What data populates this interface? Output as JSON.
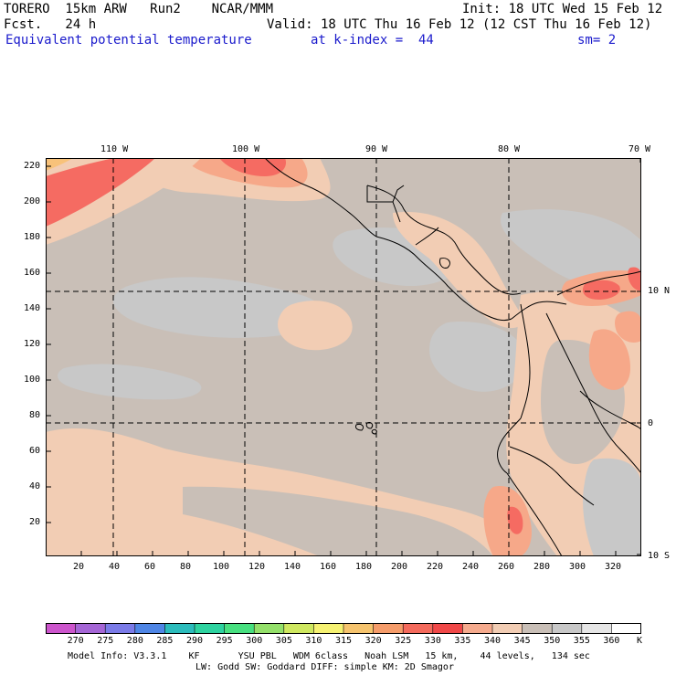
{
  "header": {
    "model": "TORERO  15km ARW   Run2    NCAR/MMM",
    "init": "Init: 18 UTC Wed 15 Feb 12",
    "fcst": "Fcst.   24 h",
    "valid": "Valid: 18 UTC Thu 16 Feb 12 (12 CST Thu 16 Feb 12)",
    "field": "Equivalent potential temperature",
    "level": "at k-index =  44",
    "smooth": "sm= 2"
  },
  "map": {
    "top_axis_labels": [
      "110 W",
      "100 W",
      "90 W",
      "80 W",
      "70 W"
    ],
    "right_axis_labels": [
      "10 N",
      "0",
      "10 S"
    ],
    "left_axis_labels": [
      "220",
      "200",
      "180",
      "160",
      "140",
      "120",
      "100",
      "80",
      "60",
      "40",
      "20"
    ],
    "bottom_axis_labels": [
      "20",
      "40",
      "60",
      "80",
      "100",
      "120",
      "140",
      "160",
      "180",
      "200",
      "220",
      "240",
      "260",
      "280",
      "300",
      "320"
    ],
    "field_colors": {
      "ocean_cold": "#c8c8c8",
      "ocean_main": "#c9bfb7",
      "warm_1": "#f2cdb4",
      "warm_2": "#f6a889",
      "warm_3": "#f56b62",
      "warm_4": "#f8c27a",
      "coast": "#000000",
      "grid": "#000000"
    }
  },
  "colorbar": {
    "unit": "K",
    "values": [
      "270",
      "275",
      "280",
      "285",
      "290",
      "295",
      "300",
      "305",
      "310",
      "315",
      "320",
      "325",
      "330",
      "335",
      "340",
      "345",
      "350",
      "355",
      "360"
    ],
    "colors": [
      "#cc55cc",
      "#a566d6",
      "#7b7be8",
      "#4f86e6",
      "#2cbcbc",
      "#2ed3a0",
      "#48e080",
      "#94e06a",
      "#cfe860",
      "#f6f272",
      "#f6c46e",
      "#f59c6a",
      "#f46a5c",
      "#f04848",
      "#f6ab8e",
      "#f2cdb4",
      "#c9bfb7",
      "#c8c8c8",
      "#e6e6e6",
      "#ffffff"
    ]
  },
  "footer": {
    "line1": "Model Info: V3.3.1    KF       YSU PBL   WDM 6class   Noah LSM   15 km,    44 levels,   134 sec",
    "line2": "LW: Godd SW: Goddard DIFF: simple KM: 2D Smagor"
  }
}
